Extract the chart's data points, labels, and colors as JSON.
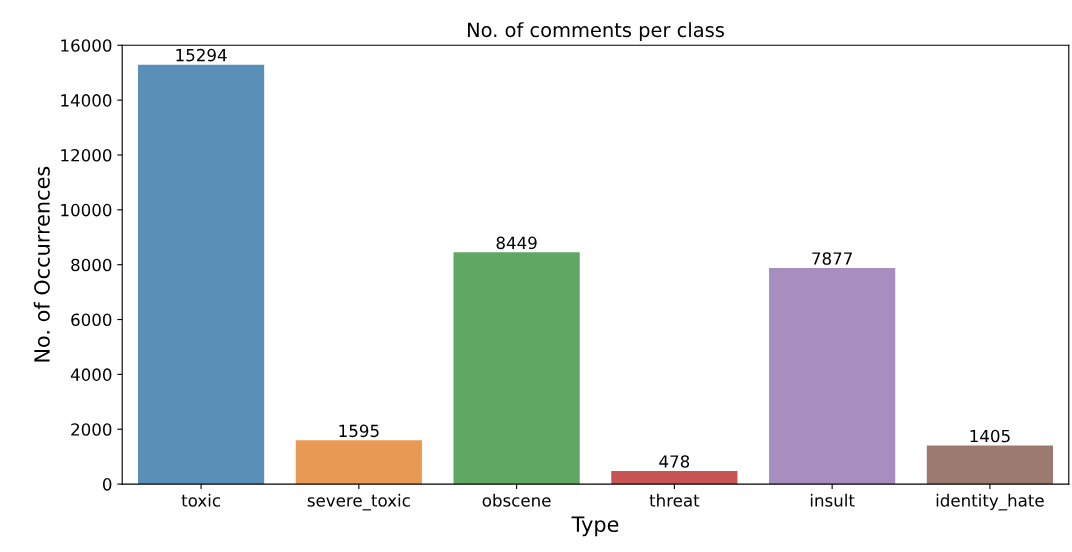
{
  "chart_data": {
    "type": "bar",
    "title": "No. of comments per class",
    "xlabel": "Type",
    "ylabel": "No. of Occurrences",
    "categories": [
      "toxic",
      "severe_toxic",
      "obscene",
      "threat",
      "insult",
      "identity_hate"
    ],
    "values": [
      15294,
      1595,
      8449,
      478,
      7877,
      1405
    ],
    "colors": [
      "#5a90b8",
      "#e89a55",
      "#60a862",
      "#c95454",
      "#a78dc0",
      "#9c7a70"
    ],
    "ylim": [
      0,
      16000
    ],
    "yticks": [
      0,
      2000,
      4000,
      6000,
      8000,
      10000,
      12000,
      14000,
      16000
    ],
    "data_labels": true,
    "grid": false
  }
}
